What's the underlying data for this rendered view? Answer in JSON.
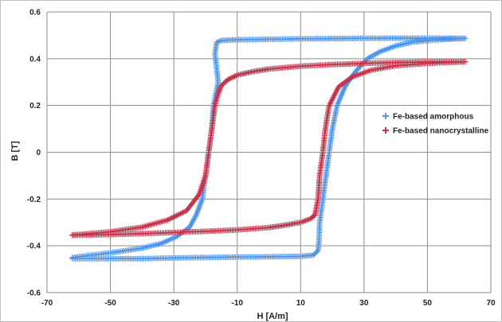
{
  "chart_data": {
    "type": "scatter",
    "title": "",
    "xlabel": "H [A/m]",
    "ylabel": "B [T]",
    "xlim": [
      -70,
      70
    ],
    "ylim": [
      -0.6,
      0.6
    ],
    "xticks": [
      -70,
      -50,
      -30,
      -10,
      10,
      30,
      50,
      70
    ],
    "yticks": [
      -0.6,
      -0.4,
      -0.2,
      0,
      0.2,
      0.4,
      0.6
    ],
    "xtick_labels": [
      "-70",
      "-50",
      "-30",
      "-10",
      "10",
      "30",
      "50",
      "70"
    ],
    "ytick_labels": [
      "-0.6",
      "-0.4",
      "-0.2",
      "0",
      "0.2",
      "0.4",
      "0.6"
    ],
    "grid": true,
    "legend": "right",
    "marker": "+",
    "series": [
      {
        "name": "Fe-based amorphous",
        "color": "#4f93e6",
        "points": [
          [
            -62,
            -0.455
          ],
          [
            -50,
            -0.455
          ],
          [
            -40,
            -0.455
          ],
          [
            -30,
            -0.452
          ],
          [
            -20,
            -0.45
          ],
          [
            -10,
            -0.448
          ],
          [
            0,
            -0.447
          ],
          [
            10,
            -0.445
          ],
          [
            14,
            -0.44
          ],
          [
            15.5,
            -0.42
          ],
          [
            15.8,
            -0.38
          ],
          [
            16,
            -0.3
          ],
          [
            17,
            -0.2
          ],
          [
            18,
            -0.1
          ],
          [
            19,
            0.0
          ],
          [
            20,
            0.1
          ],
          [
            21.5,
            0.2
          ],
          [
            24,
            0.28
          ],
          [
            27,
            0.34
          ],
          [
            31,
            0.4
          ],
          [
            35,
            0.43
          ],
          [
            40,
            0.455
          ],
          [
            45,
            0.47
          ],
          [
            52,
            0.48
          ],
          [
            62,
            0.487
          ],
          [
            50,
            0.488
          ],
          [
            40,
            0.488
          ],
          [
            30,
            0.487
          ],
          [
            20,
            0.486
          ],
          [
            10,
            0.485
          ],
          [
            0,
            0.483
          ],
          [
            -10,
            0.481
          ],
          [
            -15,
            0.478
          ],
          [
            -16.5,
            0.47
          ],
          [
            -17,
            0.42
          ],
          [
            -16,
            0.3
          ],
          [
            -17.5,
            0.2
          ],
          [
            -18,
            0.1
          ],
          [
            -19,
            0.0
          ],
          [
            -20,
            -0.1
          ],
          [
            -21,
            -0.2
          ],
          [
            -23,
            -0.27
          ],
          [
            -25,
            -0.32
          ],
          [
            -29,
            -0.36
          ],
          [
            -34,
            -0.39
          ],
          [
            -40,
            -0.41
          ],
          [
            -50,
            -0.43
          ],
          [
            -62,
            -0.45
          ]
        ]
      },
      {
        "name": "Fe-based nanocrystalline",
        "color": "#c0334a",
        "points": [
          [
            -62,
            -0.355
          ],
          [
            -50,
            -0.352
          ],
          [
            -40,
            -0.348
          ],
          [
            -30,
            -0.343
          ],
          [
            -20,
            -0.338
          ],
          [
            -10,
            -0.332
          ],
          [
            0,
            -0.322
          ],
          [
            5,
            -0.312
          ],
          [
            10,
            -0.3
          ],
          [
            13,
            -0.285
          ],
          [
            14.5,
            -0.27
          ],
          [
            15.5,
            -0.2
          ],
          [
            16,
            -0.1
          ],
          [
            17,
            0.0
          ],
          [
            17.8,
            0.1
          ],
          [
            19,
            0.2
          ],
          [
            22,
            0.28
          ],
          [
            26,
            0.32
          ],
          [
            32,
            0.35
          ],
          [
            40,
            0.37
          ],
          [
            50,
            0.38
          ],
          [
            62,
            0.387
          ],
          [
            50,
            0.386
          ],
          [
            40,
            0.384
          ],
          [
            30,
            0.38
          ],
          [
            20,
            0.375
          ],
          [
            10,
            0.368
          ],
          [
            0,
            0.356
          ],
          [
            -5,
            0.345
          ],
          [
            -10,
            0.33
          ],
          [
            -13,
            0.31
          ],
          [
            -15,
            0.285
          ],
          [
            -16,
            0.25
          ],
          [
            -17,
            0.2
          ],
          [
            -18,
            0.1
          ],
          [
            -19,
            0.0
          ],
          [
            -20,
            -0.1
          ],
          [
            -22,
            -0.18
          ],
          [
            -26,
            -0.25
          ],
          [
            -32,
            -0.29
          ],
          [
            -40,
            -0.32
          ],
          [
            -50,
            -0.34
          ],
          [
            -62,
            -0.354
          ]
        ]
      }
    ]
  }
}
